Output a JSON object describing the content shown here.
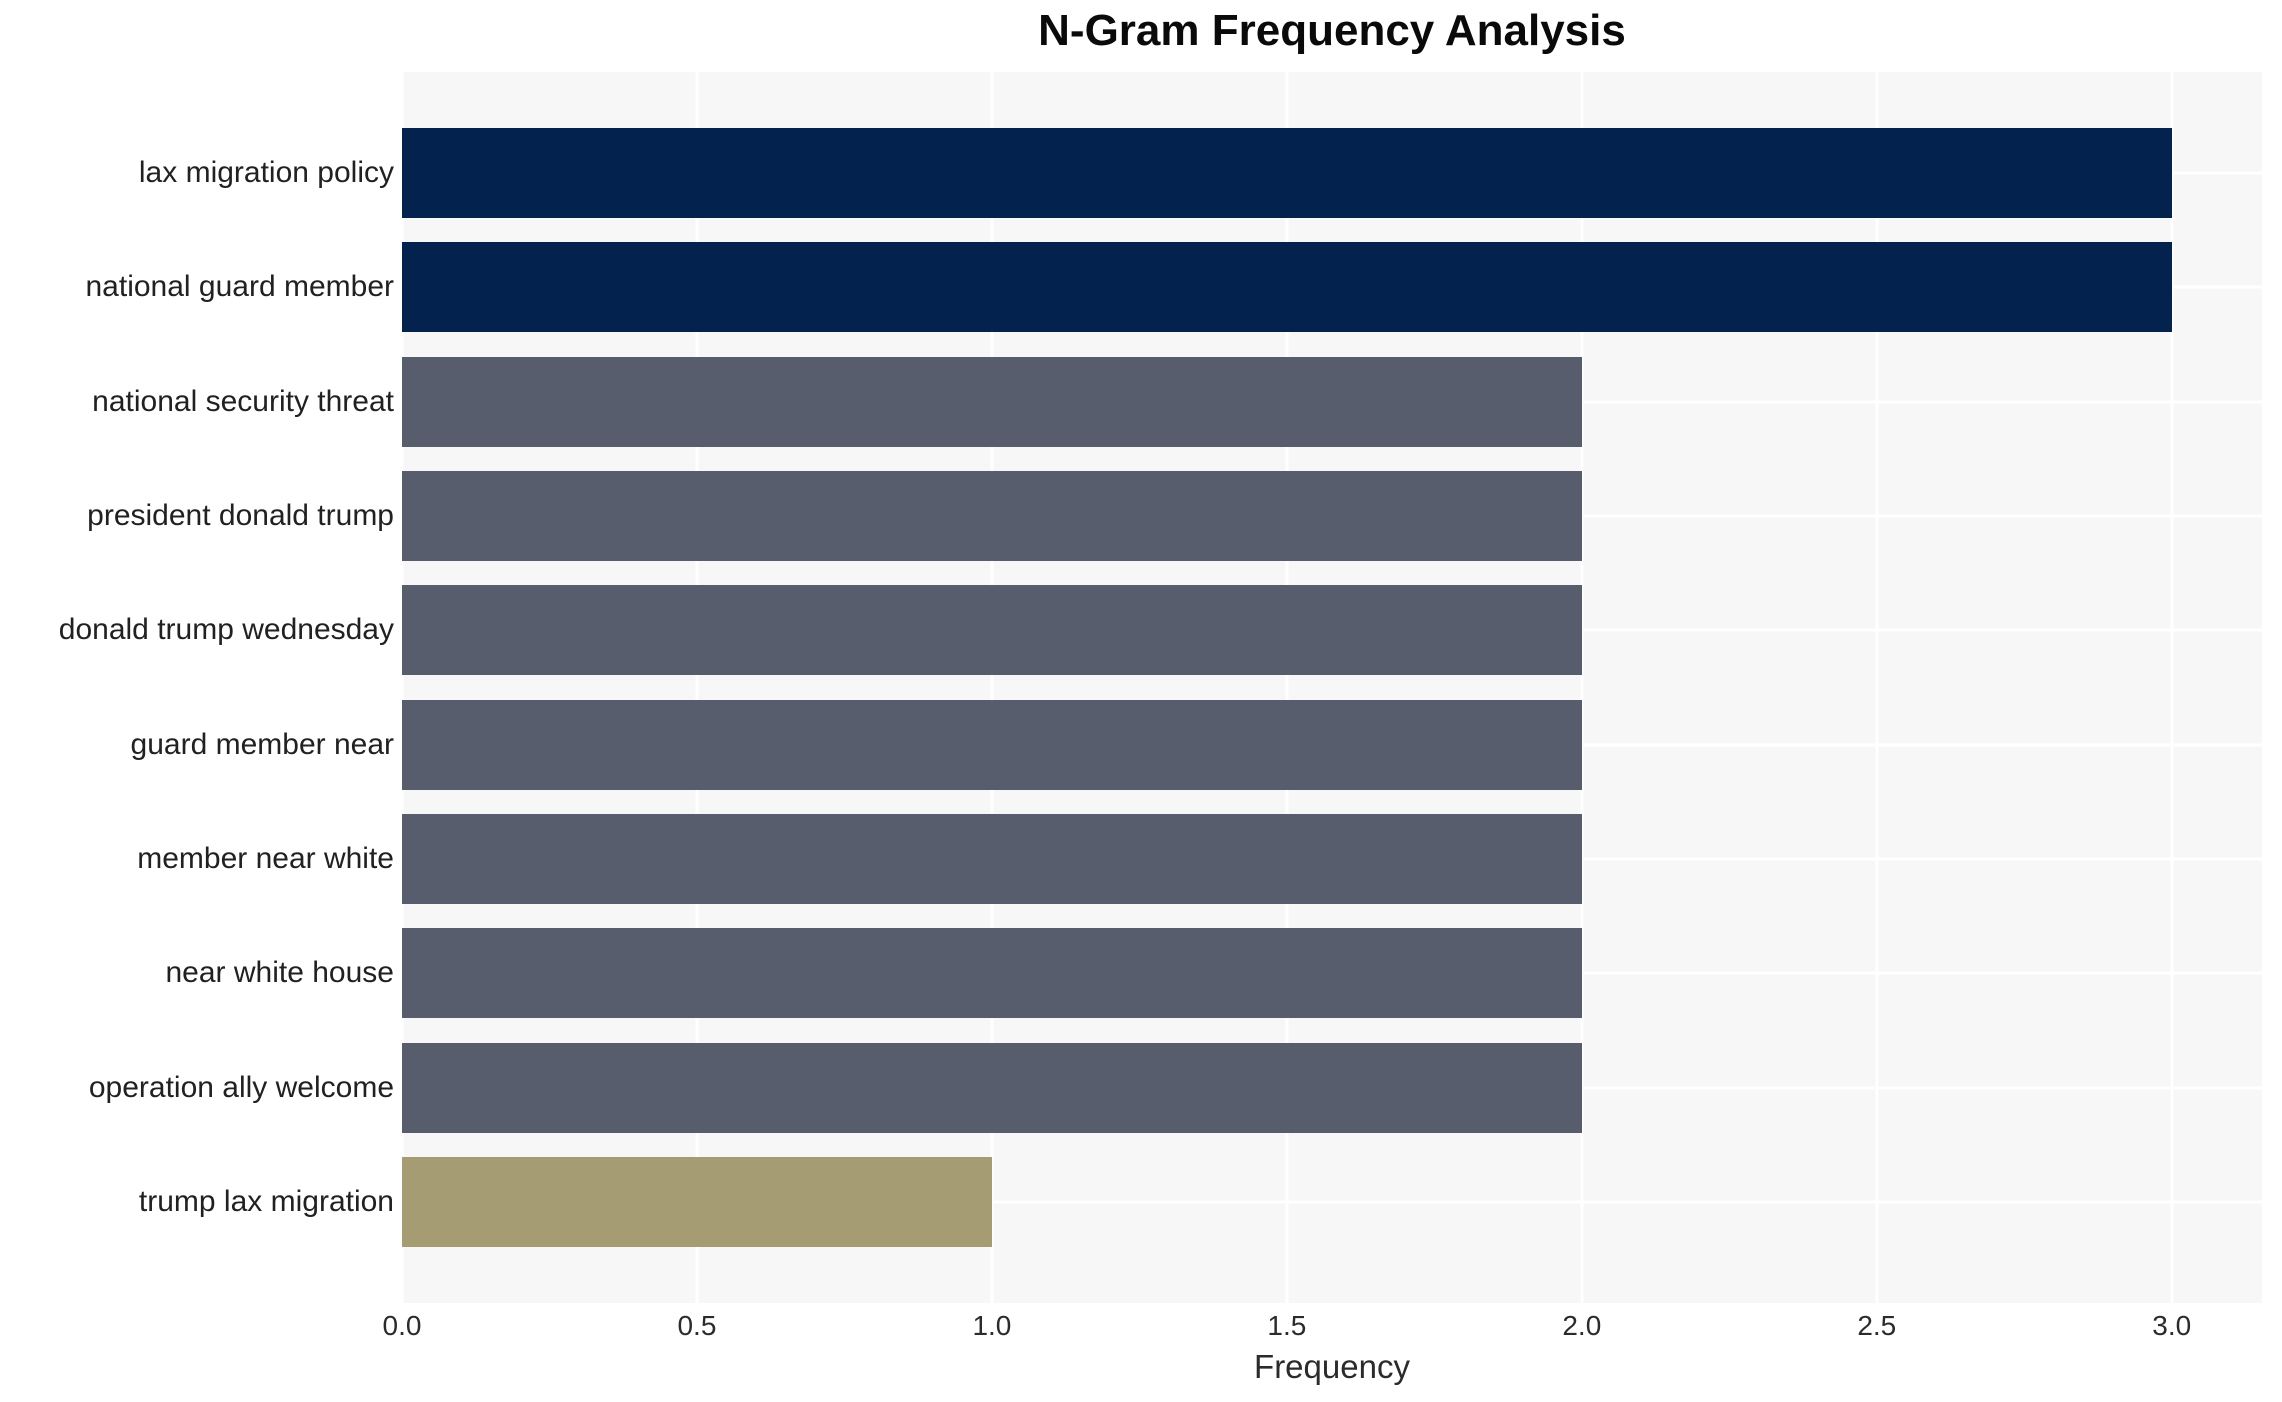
{
  "chart_data": {
    "type": "bar",
    "orientation": "horizontal",
    "title": "N-Gram Frequency Analysis",
    "xlabel": "Frequency",
    "ylabel": "",
    "categories": [
      "lax migration policy",
      "national guard member",
      "national security threat",
      "president donald trump",
      "donald trump wednesday",
      "guard member near",
      "member near white",
      "near white house",
      "operation ally welcome",
      "trump lax migration"
    ],
    "values": [
      3,
      3,
      2,
      2,
      2,
      2,
      2,
      2,
      2,
      1
    ],
    "bar_colors": [
      "#03234e",
      "#03234e",
      "#575d6c",
      "#575d6c",
      "#575d6c",
      "#575d6c",
      "#575d6c",
      "#575d6c",
      "#575d6c",
      "#a59c74"
    ],
    "x_ticks": [
      "0.0",
      "0.5",
      "1.0",
      "1.5",
      "2.0",
      "2.5",
      "3.0"
    ],
    "x_tick_values": [
      0,
      0.5,
      1,
      1.5,
      2,
      2.5,
      3
    ],
    "xlim": [
      0,
      3.153
    ],
    "grid": "on-major-white",
    "legend": "none",
    "style_colors": {
      "plot_background": "#f7f7f8",
      "page_background": "#ffffff",
      "gridline": "#ffffff",
      "value_3_bar": "#03234e",
      "value_2_bar": "#575d6c",
      "value_1_bar": "#a59c74",
      "title_text": "#0a0a0a",
      "axis_text": "#2b2b2b",
      "category_text": "#212121"
    }
  }
}
